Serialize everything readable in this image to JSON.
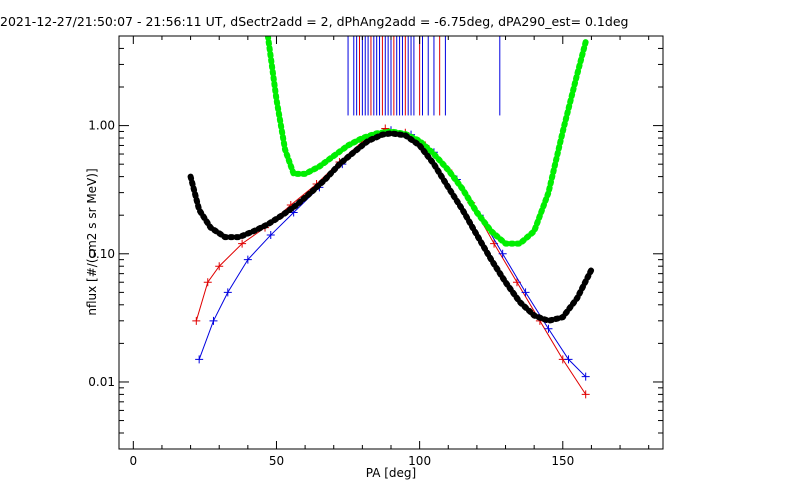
{
  "chart_data": {
    "type": "scatter",
    "title": "2021-12-27/21:50:07 - 21:56:11 UT, dSectr2add = 2, dPhAng2add = -6.75deg, dPA290_est=   0.1deg",
    "xlabel": "PA [deg]",
    "ylabel": "nflux [#/(cm2 s sr MeV)]",
    "xlim": [
      -5,
      185
    ],
    "ylim": [
      0.003,
      5.0
    ],
    "y_scale": "log",
    "x_ticks": [
      0,
      50,
      100,
      150
    ],
    "x_tick_labels": [
      "0",
      "50",
      "100",
      "150"
    ],
    "y_ticks": [
      0.01,
      0.1,
      1.0
    ],
    "y_tick_labels": [
      "0.01",
      "0.10",
      "1.00"
    ],
    "grid": false,
    "legend": "none",
    "colors": {
      "red_series": "#e00000",
      "blue_series": "#0000e0",
      "green_fit": "#00ee00",
      "black_fit": "#000000",
      "axes": "#000000"
    },
    "series": [
      {
        "color_key": "red_series",
        "style": "line+plus",
        "x": [
          22,
          26,
          30,
          38,
          46,
          55,
          64,
          72,
          80,
          88,
          95,
          102,
          110,
          118,
          126,
          134,
          142,
          150,
          158
        ],
        "y": [
          0.03,
          0.06,
          0.08,
          0.12,
          0.16,
          0.24,
          0.35,
          0.52,
          0.75,
          0.95,
          0.88,
          0.7,
          0.45,
          0.25,
          0.12,
          0.06,
          0.03,
          0.015,
          0.008
        ]
      },
      {
        "color_key": "blue_series",
        "style": "line+plus",
        "x": [
          23,
          28,
          33,
          40,
          48,
          56,
          65,
          73,
          82,
          90,
          97,
          105,
          113,
          121,
          129,
          137,
          145,
          152,
          158
        ],
        "y": [
          0.015,
          0.03,
          0.05,
          0.09,
          0.14,
          0.21,
          0.33,
          0.5,
          0.78,
          0.92,
          0.85,
          0.62,
          0.38,
          0.2,
          0.1,
          0.05,
          0.026,
          0.015,
          0.011
        ]
      },
      {
        "color_key": "green_fit",
        "style": "thick-dots",
        "x": [
          47,
          50,
          53,
          56,
          60,
          65,
          70,
          75,
          80,
          85,
          90,
          95,
          100,
          105,
          110,
          115,
          120,
          125,
          130,
          135,
          140,
          145,
          150,
          155,
          158
        ],
        "y": [
          5.0,
          1.6,
          0.65,
          0.42,
          0.42,
          0.48,
          0.58,
          0.7,
          0.8,
          0.87,
          0.9,
          0.86,
          0.76,
          0.6,
          0.45,
          0.32,
          0.21,
          0.15,
          0.12,
          0.12,
          0.15,
          0.3,
          0.9,
          2.5,
          4.5
        ]
      },
      {
        "color_key": "black_fit",
        "style": "thick-dots",
        "x": [
          20,
          23,
          27,
          32,
          37,
          42,
          47,
          52,
          57,
          62,
          67,
          72,
          77,
          82,
          87,
          90,
          95,
          100,
          105,
          110,
          115,
          120,
          125,
          130,
          135,
          140,
          145,
          150,
          155,
          160
        ],
        "y": [
          0.4,
          0.22,
          0.16,
          0.135,
          0.135,
          0.15,
          0.17,
          0.2,
          0.24,
          0.3,
          0.38,
          0.5,
          0.62,
          0.76,
          0.85,
          0.87,
          0.84,
          0.7,
          0.5,
          0.33,
          0.22,
          0.14,
          0.09,
          0.06,
          0.042,
          0.033,
          0.03,
          0.032,
          0.045,
          0.075
        ]
      }
    ],
    "vertical_markers": {
      "color_key": "blue_series",
      "secondary_color_key": "red_series",
      "x": [
        75,
        77,
        78,
        79,
        80,
        81,
        82,
        83,
        84,
        85,
        86,
        87,
        88,
        89,
        90,
        91,
        92,
        93,
        94,
        95,
        96,
        97,
        98,
        100,
        101,
        103,
        105,
        107,
        109,
        128
      ],
      "y_from": 1.2,
      "y_to": 5.0
    }
  }
}
